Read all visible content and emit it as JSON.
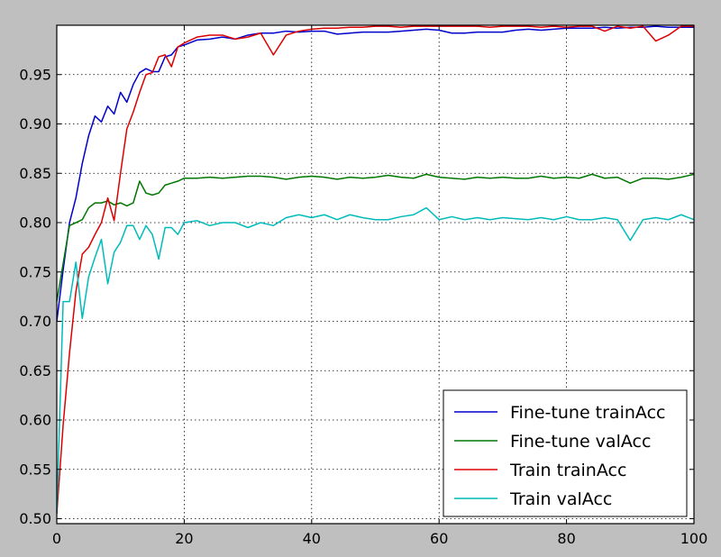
{
  "chart_data": {
    "type": "line",
    "title": "",
    "xlabel": "",
    "ylabel": "",
    "xlim": [
      0,
      100
    ],
    "ylim": [
      0.495,
      1.0
    ],
    "xticks": [
      0,
      20,
      40,
      60,
      80,
      100
    ],
    "yticks": [
      0.5,
      0.55,
      0.6,
      0.65,
      0.7,
      0.75,
      0.8,
      0.85,
      0.9,
      0.95
    ],
    "xtick_labels": [
      "0",
      "20",
      "40",
      "60",
      "80",
      "100"
    ],
    "ytick_labels": [
      "0.50",
      "0.55",
      "0.60",
      "0.65",
      "0.70",
      "0.75",
      "0.80",
      "0.85",
      "0.90",
      "0.95"
    ],
    "grid": true,
    "legend_position": "lower-right",
    "series": [
      {
        "name": "Fine-tune trainAcc",
        "color": "#0000cc",
        "x": [
          0,
          1,
          2,
          3,
          4,
          5,
          6,
          7,
          8,
          9,
          10,
          11,
          12,
          13,
          14,
          15,
          16,
          17,
          18,
          19,
          20,
          22,
          24,
          26,
          28,
          30,
          32,
          34,
          36,
          38,
          40,
          42,
          44,
          46,
          48,
          50,
          52,
          54,
          56,
          58,
          60,
          62,
          64,
          66,
          68,
          70,
          72,
          74,
          76,
          78,
          80,
          82,
          84,
          86,
          88,
          90,
          92,
          94,
          96,
          98,
          100
        ],
        "y": [
          0.7,
          0.752,
          0.8,
          0.825,
          0.86,
          0.888,
          0.908,
          0.902,
          0.918,
          0.91,
          0.932,
          0.922,
          0.94,
          0.952,
          0.956,
          0.953,
          0.953,
          0.968,
          0.97,
          0.978,
          0.98,
          0.985,
          0.986,
          0.988,
          0.986,
          0.99,
          0.992,
          0.992,
          0.994,
          0.993,
          0.994,
          0.994,
          0.991,
          0.992,
          0.993,
          0.993,
          0.993,
          0.994,
          0.995,
          0.996,
          0.995,
          0.992,
          0.992,
          0.993,
          0.993,
          0.993,
          0.995,
          0.996,
          0.995,
          0.996,
          0.997,
          0.997,
          0.997,
          0.998,
          0.997,
          0.998,
          0.998,
          0.999,
          0.998,
          0.998,
          0.998
        ]
      },
      {
        "name": "Fine-tune valAcc",
        "color": "#007700",
        "x": [
          0,
          2,
          3,
          4,
          5,
          6,
          7,
          8,
          9,
          10,
          11,
          12,
          13,
          14,
          15,
          16,
          17,
          18,
          19,
          20,
          22,
          24,
          26,
          28,
          30,
          32,
          34,
          36,
          38,
          40,
          42,
          44,
          46,
          48,
          50,
          52,
          54,
          56,
          58,
          60,
          62,
          64,
          66,
          68,
          70,
          72,
          74,
          76,
          78,
          80,
          82,
          84,
          86,
          88,
          90,
          92,
          94,
          96,
          98,
          100
        ],
        "y": [
          0.72,
          0.797,
          0.8,
          0.803,
          0.815,
          0.82,
          0.82,
          0.822,
          0.818,
          0.82,
          0.817,
          0.82,
          0.842,
          0.83,
          0.828,
          0.83,
          0.838,
          0.84,
          0.842,
          0.845,
          0.845,
          0.846,
          0.845,
          0.846,
          0.847,
          0.847,
          0.846,
          0.844,
          0.846,
          0.847,
          0.846,
          0.844,
          0.846,
          0.845,
          0.846,
          0.848,
          0.846,
          0.845,
          0.849,
          0.846,
          0.845,
          0.844,
          0.846,
          0.845,
          0.846,
          0.845,
          0.845,
          0.847,
          0.845,
          0.846,
          0.845,
          0.849,
          0.845,
          0.846,
          0.84,
          0.845,
          0.845,
          0.844,
          0.846,
          0.849
        ]
      },
      {
        "name": "Train trainAcc",
        "color": "#dd0000",
        "x": [
          0,
          1,
          2,
          3,
          4,
          5,
          6,
          7,
          8,
          9,
          10,
          11,
          12,
          13,
          14,
          15,
          16,
          17,
          18,
          19,
          20,
          22,
          24,
          26,
          28,
          30,
          32,
          34,
          36,
          38,
          40,
          42,
          44,
          46,
          48,
          50,
          52,
          54,
          56,
          58,
          60,
          62,
          64,
          66,
          68,
          70,
          72,
          74,
          76,
          78,
          80,
          82,
          84,
          86,
          88,
          90,
          92,
          94,
          96,
          98,
          100
        ],
        "y": [
          0.505,
          0.595,
          0.668,
          0.73,
          0.768,
          0.775,
          0.788,
          0.8,
          0.825,
          0.802,
          0.85,
          0.895,
          0.912,
          0.932,
          0.95,
          0.952,
          0.968,
          0.97,
          0.958,
          0.978,
          0.982,
          0.988,
          0.99,
          0.99,
          0.986,
          0.988,
          0.992,
          0.97,
          0.99,
          0.994,
          0.996,
          0.997,
          0.997,
          0.998,
          0.998,
          0.999,
          0.999,
          0.998,
          0.999,
          0.999,
          0.999,
          0.999,
          0.999,
          0.999,
          0.998,
          0.999,
          0.999,
          0.999,
          0.998,
          0.999,
          0.998,
          0.999,
          0.999,
          0.994,
          0.999,
          0.997,
          0.999,
          0.984,
          0.99,
          0.999,
          0.999
        ]
      },
      {
        "name": "Train valAcc",
        "color": "#00bbbb",
        "x": [
          0,
          1,
          2,
          3,
          4,
          5,
          6,
          7,
          8,
          9,
          10,
          11,
          12,
          13,
          14,
          15,
          16,
          17,
          18,
          19,
          20,
          22,
          24,
          26,
          28,
          30,
          32,
          34,
          36,
          38,
          40,
          42,
          44,
          46,
          48,
          50,
          52,
          54,
          56,
          58,
          60,
          62,
          64,
          66,
          68,
          70,
          72,
          74,
          76,
          78,
          80,
          82,
          84,
          86,
          88,
          90,
          92,
          94,
          96,
          98,
          100
        ],
        "y": [
          0.505,
          0.72,
          0.72,
          0.76,
          0.703,
          0.745,
          0.765,
          0.783,
          0.738,
          0.77,
          0.78,
          0.797,
          0.797,
          0.783,
          0.797,
          0.788,
          0.763,
          0.795,
          0.795,
          0.788,
          0.8,
          0.802,
          0.797,
          0.8,
          0.8,
          0.795,
          0.8,
          0.797,
          0.805,
          0.808,
          0.805,
          0.808,
          0.803,
          0.808,
          0.805,
          0.803,
          0.803,
          0.806,
          0.808,
          0.815,
          0.803,
          0.806,
          0.803,
          0.805,
          0.803,
          0.805,
          0.804,
          0.803,
          0.805,
          0.803,
          0.806,
          0.803,
          0.803,
          0.805,
          0.803,
          0.782,
          0.803,
          0.805,
          0.803,
          0.808,
          0.803
        ]
      }
    ]
  }
}
